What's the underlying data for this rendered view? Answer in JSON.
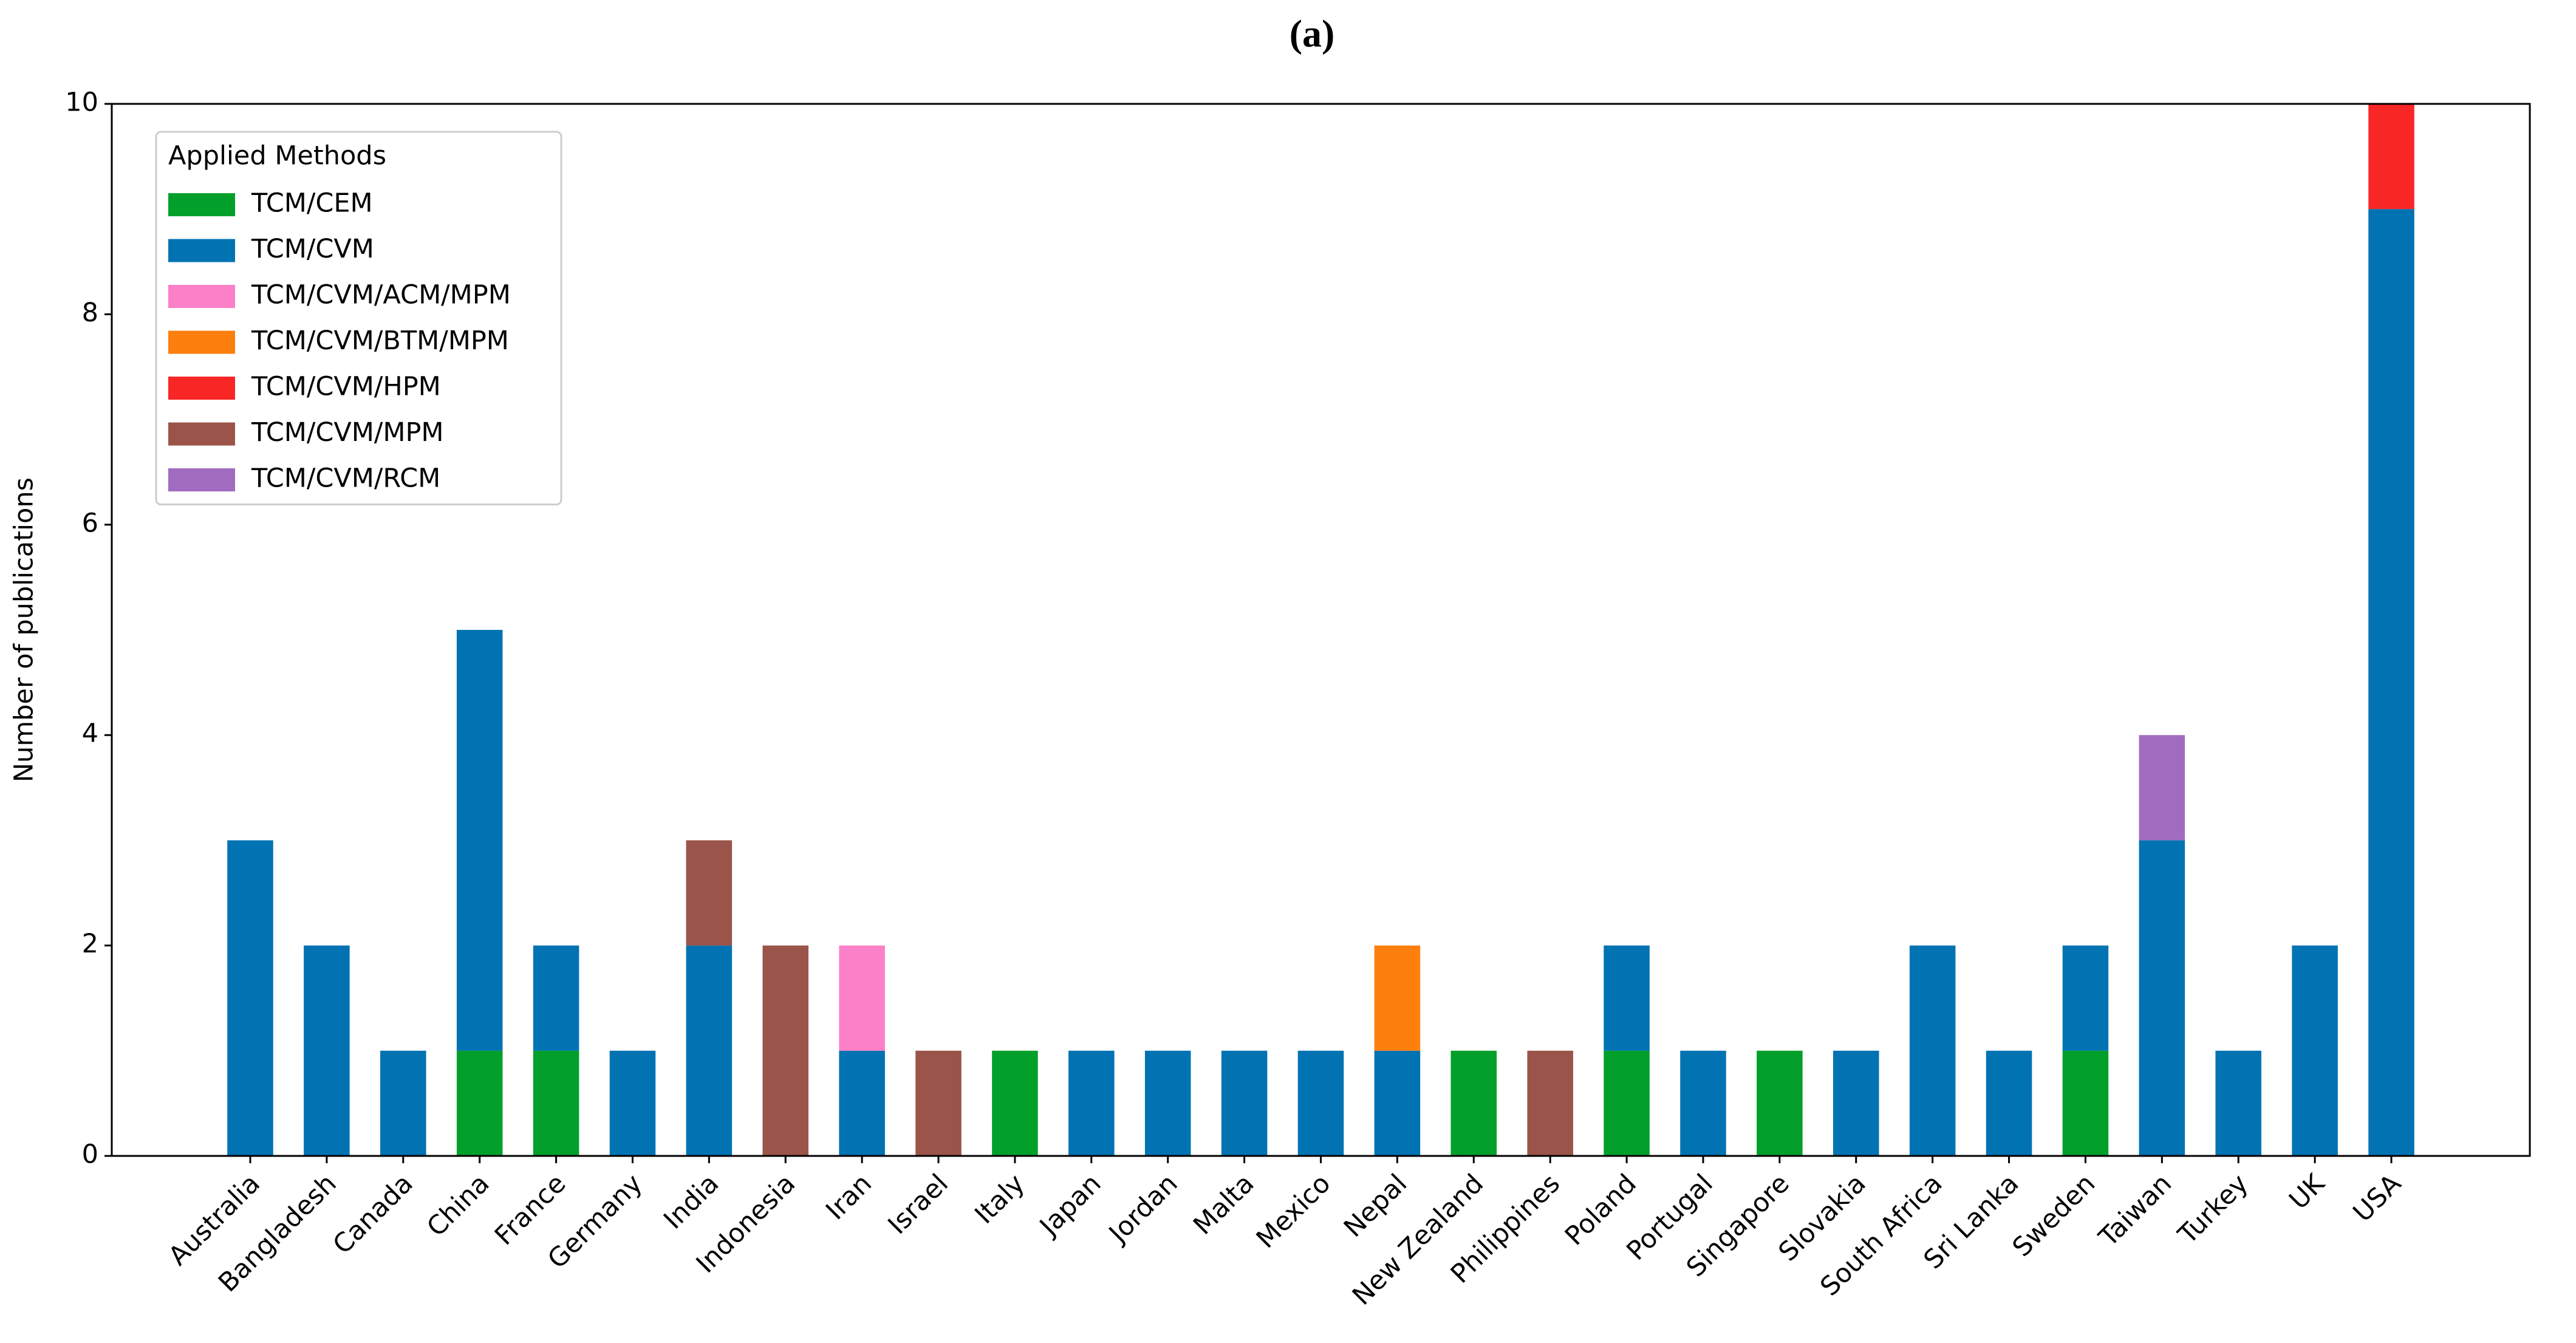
{
  "chart_data": {
    "type": "stacked_bar",
    "title": "(a)",
    "y_label": "Number of publications",
    "categories": [
      "Australia",
      "Bangladesh",
      "Canada",
      "China",
      "France",
      "Germany",
      "India",
      "Indonesia",
      "Iran",
      "Israel",
      "Italy",
      "Japan",
      "Jordan",
      "Malta",
      "Mexico",
      "Nepal",
      "New Zealand",
      "Philippines",
      "Poland",
      "Portugal",
      "Singapore",
      "Slovakia",
      "South Africa",
      "Sri Lanka",
      "Sweden",
      "Taiwan",
      "Turkey",
      "UK",
      "USA"
    ],
    "series": [
      {
        "name": "TCM/CEM",
        "color": "#02a02a",
        "values": [
          0,
          0,
          0,
          1,
          1,
          0,
          0,
          0,
          0,
          0,
          1,
          0,
          0,
          0,
          0,
          0,
          1,
          0,
          1,
          0,
          1,
          0,
          0,
          0,
          1,
          0,
          0,
          0,
          0
        ]
      },
      {
        "name": "TCM/CVM",
        "color": "#0173b2",
        "values": [
          3,
          2,
          1,
          4,
          1,
          1,
          2,
          0,
          1,
          0,
          0,
          1,
          1,
          1,
          1,
          1,
          0,
          0,
          1,
          1,
          0,
          1,
          2,
          1,
          1,
          3,
          1,
          2,
          9
        ]
      },
      {
        "name": "TCM/CVM/ACM/MPM",
        "color": "#fb80c7",
        "values": [
          0,
          0,
          0,
          0,
          0,
          0,
          0,
          0,
          1,
          0,
          0,
          0,
          0,
          0,
          0,
          0,
          0,
          0,
          0,
          0,
          0,
          0,
          0,
          0,
          0,
          0,
          0,
          0,
          0
        ]
      },
      {
        "name": "TCM/CVM/BTM/MPM",
        "color": "#fd7f0e",
        "values": [
          0,
          0,
          0,
          0,
          0,
          0,
          0,
          0,
          0,
          0,
          0,
          0,
          0,
          0,
          0,
          1,
          0,
          0,
          0,
          0,
          0,
          0,
          0,
          0,
          0,
          0,
          0,
          0,
          0
        ]
      },
      {
        "name": "TCM/CVM/HPM",
        "color": "#f92626",
        "values": [
          0,
          0,
          0,
          0,
          0,
          0,
          0,
          0,
          0,
          0,
          0,
          0,
          0,
          0,
          0,
          0,
          0,
          0,
          0,
          0,
          0,
          0,
          0,
          0,
          0,
          0,
          0,
          0,
          1
        ]
      },
      {
        "name": "TCM/CVM/MPM",
        "color": "#9b5449",
        "values": [
          0,
          0,
          0,
          0,
          0,
          0,
          1,
          2,
          0,
          1,
          0,
          0,
          0,
          0,
          0,
          0,
          0,
          1,
          0,
          0,
          0,
          0,
          0,
          0,
          0,
          0,
          0,
          0,
          0
        ]
      },
      {
        "name": "TCM/CVM/RCM",
        "color": "#a06cc0",
        "values": [
          0,
          0,
          0,
          0,
          0,
          0,
          0,
          0,
          0,
          0,
          0,
          0,
          0,
          0,
          0,
          0,
          0,
          0,
          0,
          0,
          0,
          0,
          0,
          0,
          0,
          1,
          0,
          0,
          0
        ]
      }
    ],
    "legend_title": "Applied Methods",
    "legend_loc": "upper left",
    "ylim": [
      0,
      10
    ],
    "yticks": [
      0,
      2,
      4,
      6,
      8,
      10
    ]
  }
}
